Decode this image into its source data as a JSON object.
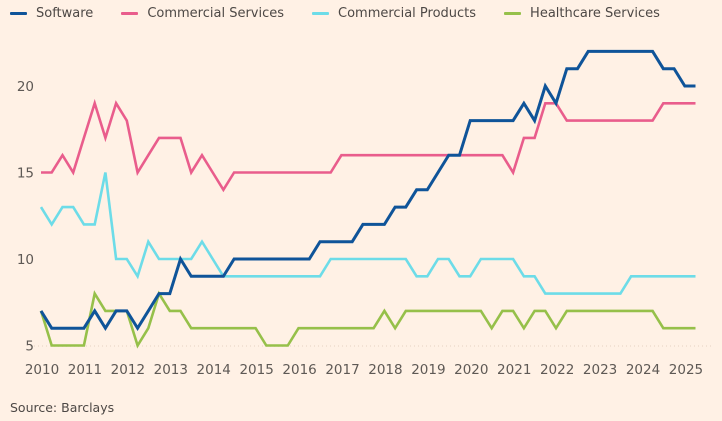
{
  "chart_data": {
    "type": "line",
    "title": "",
    "xlabel": "",
    "ylabel": "",
    "x_start": "2010 Q1",
    "x_frequency": "quarterly",
    "xticks": [
      "2010",
      "2011",
      "2012",
      "2013",
      "2014",
      "2015",
      "2016",
      "2017",
      "2018",
      "2019",
      "2020",
      "2021",
      "2022",
      "2023",
      "2024",
      "2025"
    ],
    "yticks": [
      5,
      10,
      15,
      20
    ],
    "ylim": [
      4.5,
      23
    ],
    "grid": false,
    "legend_position": "top",
    "series": [
      {
        "name": "Software",
        "color": "#0F5499",
        "values": [
          7,
          6,
          6,
          6,
          6,
          7,
          6,
          7,
          7,
          6,
          7,
          8,
          8,
          10,
          9,
          9,
          9,
          9,
          10,
          10,
          10,
          10,
          10,
          10,
          10,
          10,
          11,
          11,
          11,
          11,
          12,
          12,
          12,
          13,
          13,
          14,
          14,
          15,
          16,
          16,
          18,
          18,
          18,
          18,
          18,
          19,
          18,
          20,
          19,
          21,
          21,
          22,
          22,
          22,
          22,
          22,
          22,
          22,
          21,
          21,
          20,
          20
        ]
      },
      {
        "name": "Commercial Services",
        "color": "#E95D8C",
        "values": [
          15,
          15,
          16,
          15,
          17,
          19,
          17,
          19,
          18,
          15,
          16,
          17,
          17,
          17,
          15,
          16,
          15,
          14,
          15,
          15,
          15,
          15,
          15,
          15,
          15,
          15,
          15,
          15,
          16,
          16,
          16,
          16,
          16,
          16,
          16,
          16,
          16,
          16,
          16,
          16,
          16,
          16,
          16,
          16,
          15,
          17,
          17,
          19,
          19,
          18,
          18,
          18,
          18,
          18,
          18,
          18,
          18,
          18,
          19,
          19,
          19,
          19
        ]
      },
      {
        "name": "Commercial Products",
        "color": "#6DDCE8",
        "values": [
          13,
          12,
          13,
          13,
          12,
          12,
          15,
          10,
          10,
          9,
          11,
          10,
          10,
          10,
          10,
          11,
          10,
          9,
          9,
          9,
          9,
          9,
          9,
          9,
          9,
          9,
          9,
          10,
          10,
          10,
          10,
          10,
          10,
          10,
          10,
          9,
          9,
          10,
          10,
          9,
          9,
          10,
          10,
          10,
          10,
          9,
          9,
          8,
          8,
          8,
          8,
          8,
          8,
          8,
          8,
          9,
          9,
          9,
          9,
          9,
          9,
          9
        ]
      },
      {
        "name": "Healthcare Services",
        "color": "#96C04A",
        "values": [
          7,
          5,
          5,
          5,
          5,
          8,
          7,
          7,
          7,
          5,
          6,
          8,
          7,
          7,
          6,
          6,
          6,
          6,
          6,
          6,
          6,
          5,
          5,
          5,
          6,
          6,
          6,
          6,
          6,
          6,
          6,
          6,
          7,
          6,
          7,
          7,
          7,
          7,
          7,
          7,
          7,
          7,
          6,
          7,
          7,
          6,
          7,
          7,
          6,
          7,
          7,
          7,
          7,
          7,
          7,
          7,
          7,
          7,
          6,
          6,
          6,
          6
        ]
      }
    ]
  },
  "footer": {
    "source": "Source: Barclays"
  }
}
